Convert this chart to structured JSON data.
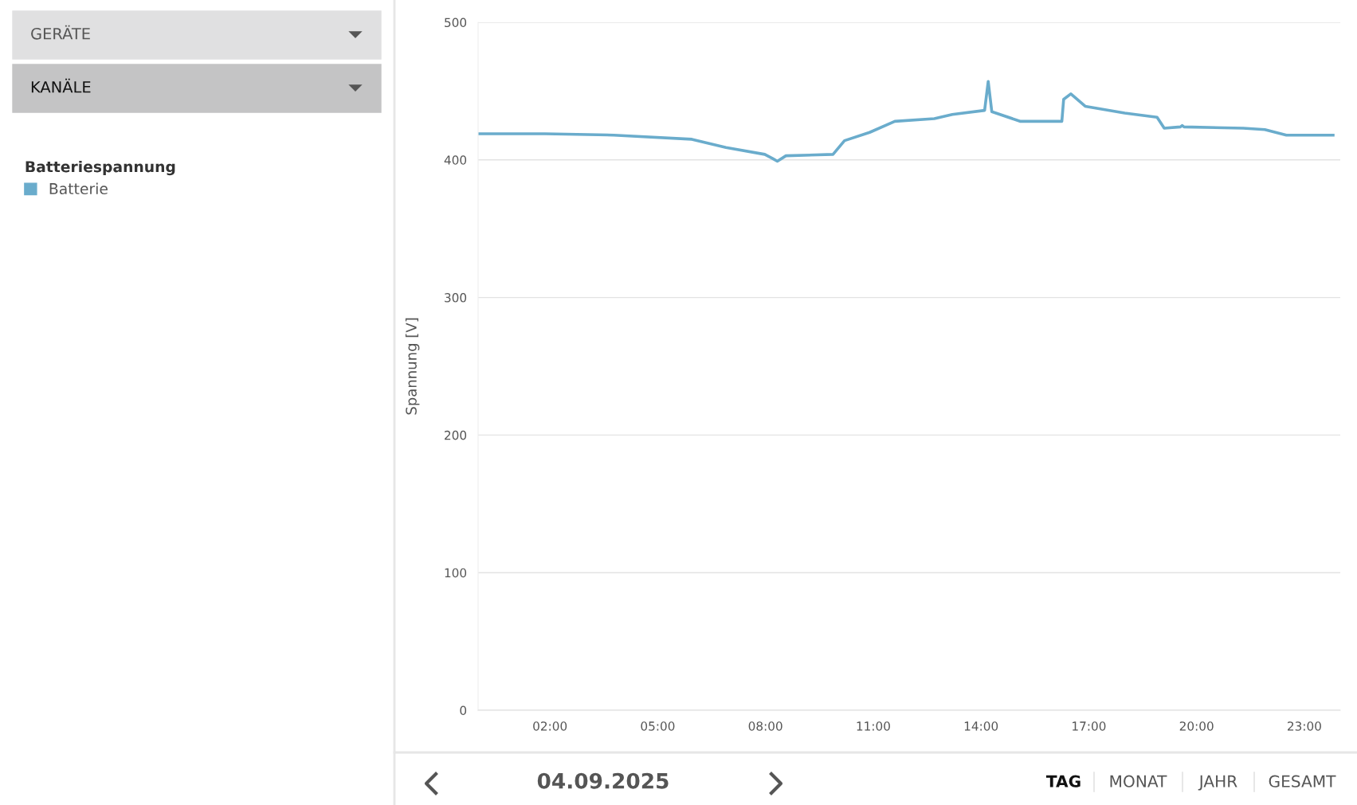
{
  "chart_data": {
    "type": "line",
    "ylabel": "Spannung [V]",
    "legend_title": "Batteriespannung",
    "x": [
      0,
      1.86,
      3.78,
      5.95,
      6.9,
      7.98,
      8.2,
      8.33,
      8.57,
      9.88,
      10.2,
      10.9,
      11.6,
      12.7,
      13.2,
      14.1,
      14.2,
      14.3,
      15.1,
      16.25,
      16.3,
      16.5,
      16.9,
      18.0,
      18.9,
      19.1,
      19.55,
      19.6,
      19.65,
      21.3,
      21.9,
      22.5,
      23.8
    ],
    "series": [
      {
        "name": "Batterie",
        "color": "#6aaccc",
        "values": [
          419,
          419,
          418,
          415,
          409,
          404,
          401,
          399,
          403,
          404,
          414,
          420,
          428,
          430,
          433,
          436,
          457,
          435,
          428,
          428,
          444,
          448,
          439,
          434,
          431,
          423,
          424,
          425,
          424,
          423,
          422,
          418,
          418
        ]
      }
    ],
    "xlim": [
      0,
      24
    ],
    "xticks": [
      {
        "value": 2,
        "label": "02:00"
      },
      {
        "value": 5,
        "label": "05:00"
      },
      {
        "value": 8,
        "label": "08:00"
      },
      {
        "value": 11,
        "label": "11:00"
      },
      {
        "value": 14,
        "label": "14:00"
      },
      {
        "value": 17,
        "label": "17:00"
      },
      {
        "value": 20,
        "label": "20:00"
      },
      {
        "value": 23,
        "label": "23:00"
      }
    ],
    "ylim": [
      0,
      500
    ],
    "yticks": [
      0,
      100,
      200,
      300,
      400,
      500
    ],
    "grid": "y",
    "legend": "left",
    "marker": "none",
    "line_style": "solid",
    "annotations": [
      "GERÄTE",
      "KANÄLE",
      "04.09.2025",
      "TAG",
      "MONAT",
      "JAHR",
      "GESAMT"
    ]
  }
}
